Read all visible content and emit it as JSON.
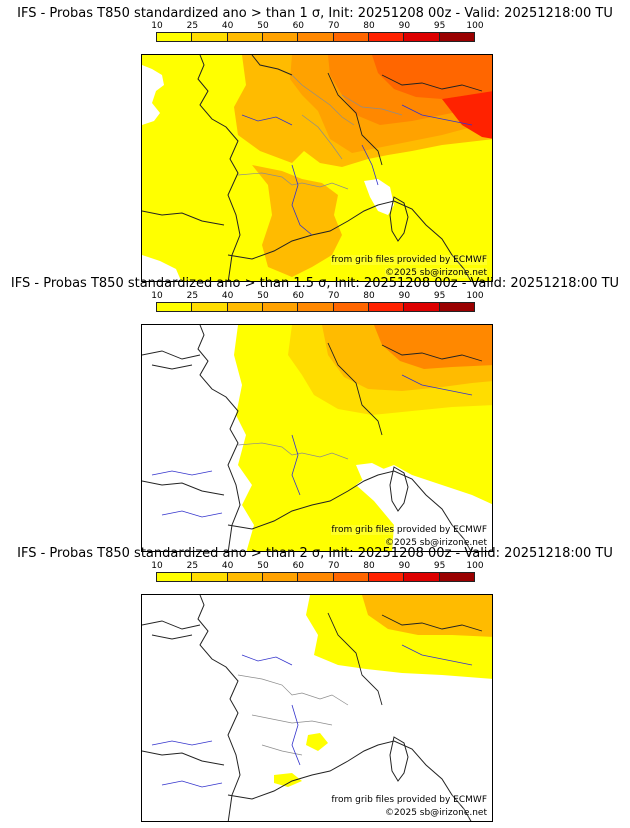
{
  "colorbar": {
    "ticks": [
      "10",
      "25",
      "40",
      "50",
      "60",
      "70",
      "80",
      "90",
      "95",
      "100"
    ],
    "colors": [
      "#ffff00",
      "#ffdd00",
      "#ffbb00",
      "#ffa200",
      "#ff8800",
      "#ff6600",
      "#ff2200",
      "#dd0000",
      "#990000",
      "#550000"
    ]
  },
  "map_colors": {
    "land": "#ffffff",
    "border": "#222222",
    "admin": "#8c8c8c",
    "river": "#3333cc"
  },
  "panels": [
    {
      "title": "IFS - Probas T850  standardized ano > than 1 σ, Init: 20251208 00z - Valid: 20251218:00 TU",
      "source": "from grib files provided by ECMWF",
      "copyright": "©2025 sb@irizone.net"
    },
    {
      "title": "IFS - Probas T850  standardized ano > than 1.5 σ, Init: 20251208 00z - Valid: 20251218:00 TU",
      "source": "from grib files provided by ECMWF",
      "copyright": "©2025 sb@irizone.net"
    },
    {
      "title": "IFS - Probas T850  standardized ano > than 2 σ, Init: 20251208 00z - Valid: 20251218:00 TU",
      "source": "from grib files provided by ECMWF",
      "copyright": "©2025 sb@irizone.net"
    }
  ]
}
